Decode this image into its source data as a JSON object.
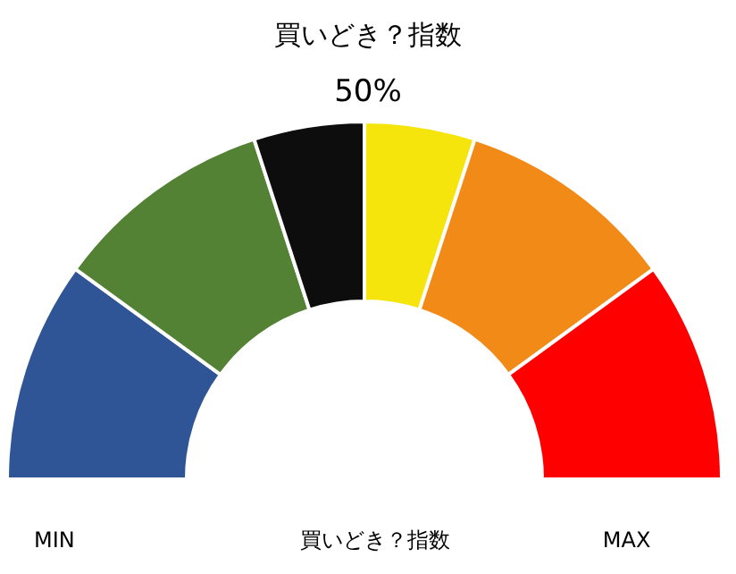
{
  "chart_data": {
    "type": "donut",
    "title": "買いどき？指数",
    "subtitle": "50%",
    "categories": [
      null,
      null,
      null,
      null,
      null,
      null
    ],
    "values": [
      20,
      20,
      10,
      10,
      20,
      20
    ],
    "colors": [
      "#2f5597",
      "#548235",
      "#0d0d0d",
      "#f5e50c",
      "#f28a17",
      "#ff0000"
    ],
    "annotations": [
      "MIN",
      "買いどき？指数",
      "MAX"
    ]
  }
}
